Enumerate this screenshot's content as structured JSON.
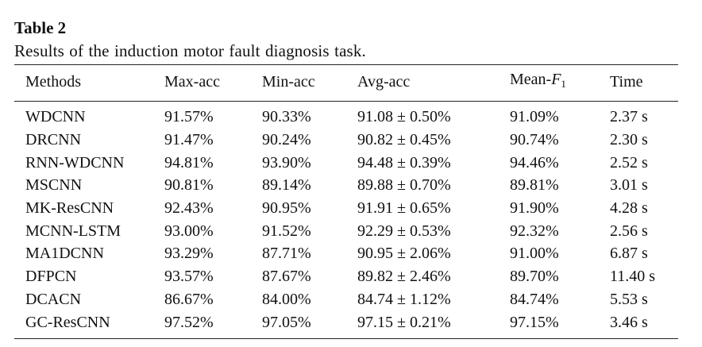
{
  "table": {
    "label": "Table 2",
    "caption": "Results of the induction motor fault diagnosis task.",
    "columns": {
      "methods": "Methods",
      "max_acc": "Max-acc",
      "min_acc": "Min-acc",
      "avg_acc": "Avg-acc",
      "mean_f1_prefix": "Mean-",
      "mean_f1_symbol": "F",
      "mean_f1_sub": "1",
      "time": "Time"
    },
    "rows": [
      {
        "method": "WDCNN",
        "max_acc": "91.57%",
        "min_acc": "90.33%",
        "avg_acc": "91.08 ± 0.50%",
        "mean_f1": "91.09%",
        "time": "2.37 s"
      },
      {
        "method": "DRCNN",
        "max_acc": "91.47%",
        "min_acc": "90.24%",
        "avg_acc": "90.82 ± 0.45%",
        "mean_f1": "90.74%",
        "time": "2.30 s"
      },
      {
        "method": "RNN-WDCNN",
        "max_acc": "94.81%",
        "min_acc": "93.90%",
        "avg_acc": "94.48 ± 0.39%",
        "mean_f1": "94.46%",
        "time": "2.52 s"
      },
      {
        "method": "MSCNN",
        "max_acc": "90.81%",
        "min_acc": "89.14%",
        "avg_acc": "89.88 ± 0.70%",
        "mean_f1": "89.81%",
        "time": "3.01 s"
      },
      {
        "method": "MK-ResCNN",
        "max_acc": "92.43%",
        "min_acc": "90.95%",
        "avg_acc": "91.91 ± 0.65%",
        "mean_f1": "91.90%",
        "time": "4.28 s"
      },
      {
        "method": "MCNN-LSTM",
        "max_acc": "93.00%",
        "min_acc": "91.52%",
        "avg_acc": "92.29 ± 0.53%",
        "mean_f1": "92.32%",
        "time": "2.56 s"
      },
      {
        "method": "MA1DCNN",
        "max_acc": "93.29%",
        "min_acc": "87.71%",
        "avg_acc": "90.95 ± 2.06%",
        "mean_f1": "91.00%",
        "time": "6.87 s"
      },
      {
        "method": "DFPCN",
        "max_acc": "93.57%",
        "min_acc": "87.67%",
        "avg_acc": "89.82 ± 2.46%",
        "mean_f1": "89.70%",
        "time": "11.40 s"
      },
      {
        "method": "DCACN",
        "max_acc": "86.67%",
        "min_acc": "84.00%",
        "avg_acc": "84.74 ± 1.12%",
        "mean_f1": "84.74%",
        "time": "5.53 s"
      },
      {
        "method": "GC-ResCNN",
        "max_acc": "97.52%",
        "min_acc": "97.05%",
        "avg_acc": "97.15 ± 0.21%",
        "mean_f1": "97.15%",
        "time": "3.46 s"
      }
    ]
  }
}
